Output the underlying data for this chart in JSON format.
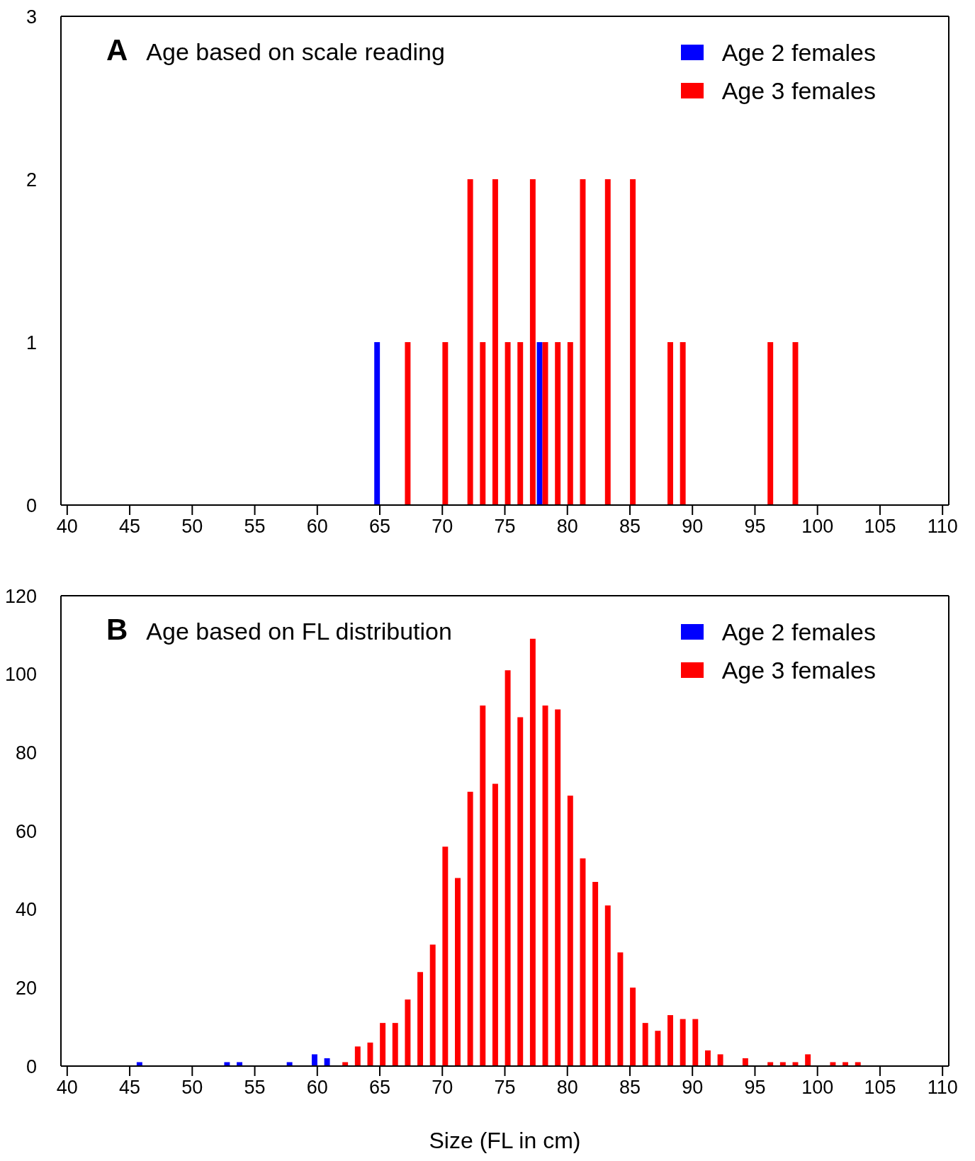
{
  "chart_data": [
    {
      "type": "bar",
      "title": "Age based on scale reading",
      "annotations": [
        "A"
      ],
      "xlim": [
        39.5,
        110.5
      ],
      "xticks": [
        40,
        45,
        50,
        55,
        60,
        65,
        70,
        75,
        80,
        85,
        90,
        95,
        100,
        105,
        110
      ],
      "ylim": [
        0,
        3
      ],
      "yticks": [
        0,
        1,
        2,
        3
      ],
      "legend": "top right",
      "series": [
        {
          "name": "Age 2 females",
          "color": "#0000ff",
          "x": [
            65,
            78
          ],
          "values": [
            1,
            1
          ]
        },
        {
          "name": "Age 3 females",
          "color": "#ff0000",
          "x": [
            67,
            70,
            72,
            73,
            74,
            75,
            76,
            77,
            78,
            79,
            80,
            81,
            83,
            85,
            88,
            89,
            96,
            98
          ],
          "values": [
            1,
            1,
            2,
            1,
            2,
            1,
            1,
            2,
            1,
            1,
            1,
            2,
            2,
            2,
            1,
            1,
            1,
            1
          ]
        }
      ]
    },
    {
      "type": "bar",
      "title": "Age based on FL distribution",
      "annotations": [
        "B"
      ],
      "xlabel": "Size (FL in cm)",
      "xlim": [
        39.5,
        110.5
      ],
      "xticks": [
        40,
        45,
        50,
        55,
        60,
        65,
        70,
        75,
        80,
        85,
        90,
        95,
        100,
        105,
        110
      ],
      "ylim": [
        0,
        120
      ],
      "yticks": [
        0,
        20,
        40,
        60,
        80,
        100,
        120
      ],
      "legend": "top right",
      "series": [
        {
          "name": "Age 2 females",
          "color": "#0000ff",
          "x": [
            46,
            53,
            54,
            58,
            60,
            61
          ],
          "values": [
            1,
            1,
            1,
            1,
            3,
            2
          ]
        },
        {
          "name": "Age 3 females",
          "color": "#ff0000",
          "x": [
            62,
            63,
            64,
            65,
            66,
            67,
            68,
            69,
            70,
            71,
            72,
            73,
            74,
            75,
            76,
            77,
            78,
            79,
            80,
            81,
            82,
            83,
            84,
            85,
            86,
            87,
            88,
            89,
            90,
            91,
            92,
            94,
            96,
            97,
            98,
            99,
            101,
            102,
            103
          ],
          "values": [
            1,
            5,
            6,
            11,
            11,
            17,
            24,
            31,
            56,
            48,
            70,
            92,
            72,
            101,
            89,
            109,
            92,
            91,
            69,
            53,
            47,
            41,
            29,
            20,
            11,
            9,
            13,
            12,
            12,
            4,
            3,
            2,
            1,
            1,
            1,
            3,
            1,
            1,
            1
          ]
        }
      ]
    }
  ]
}
